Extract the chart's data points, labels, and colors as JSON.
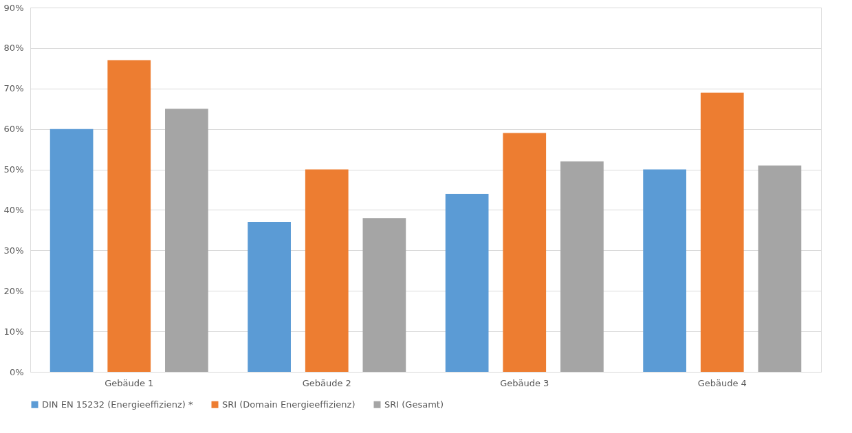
{
  "chart_data": {
    "type": "bar",
    "categories": [
      "Gebäude 1",
      "Gebäude 2",
      "Gebäude 3",
      "Gebäude 4"
    ],
    "series": [
      {
        "name": "DIN EN 15232 (Energieeffizienz) *",
        "color": "#5b9bd5",
        "values": [
          60,
          37,
          44,
          50
        ]
      },
      {
        "name": "SRI (Domain Energieeffizienz)",
        "color": "#ed7d31",
        "values": [
          77,
          50,
          59,
          69
        ]
      },
      {
        "name": "SRI (Gesamt)",
        "color": "#a5a5a5",
        "values": [
          65,
          38,
          52,
          51
        ]
      }
    ],
    "ylim": [
      0,
      90
    ],
    "yticks": [
      {
        "value": 0,
        "label": "0%"
      },
      {
        "value": 10,
        "label": "10%"
      },
      {
        "value": 20,
        "label": "20%"
      },
      {
        "value": 30,
        "label": "30%"
      },
      {
        "value": 40,
        "label": "40%"
      },
      {
        "value": 50,
        "label": "50%"
      },
      {
        "value": 60,
        "label": "60%"
      },
      {
        "value": 70,
        "label": "70%"
      },
      {
        "value": 80,
        "label": "80%"
      },
      {
        "value": 90,
        "label": "90%"
      }
    ],
    "grid": "y",
    "legend": "bottom"
  }
}
